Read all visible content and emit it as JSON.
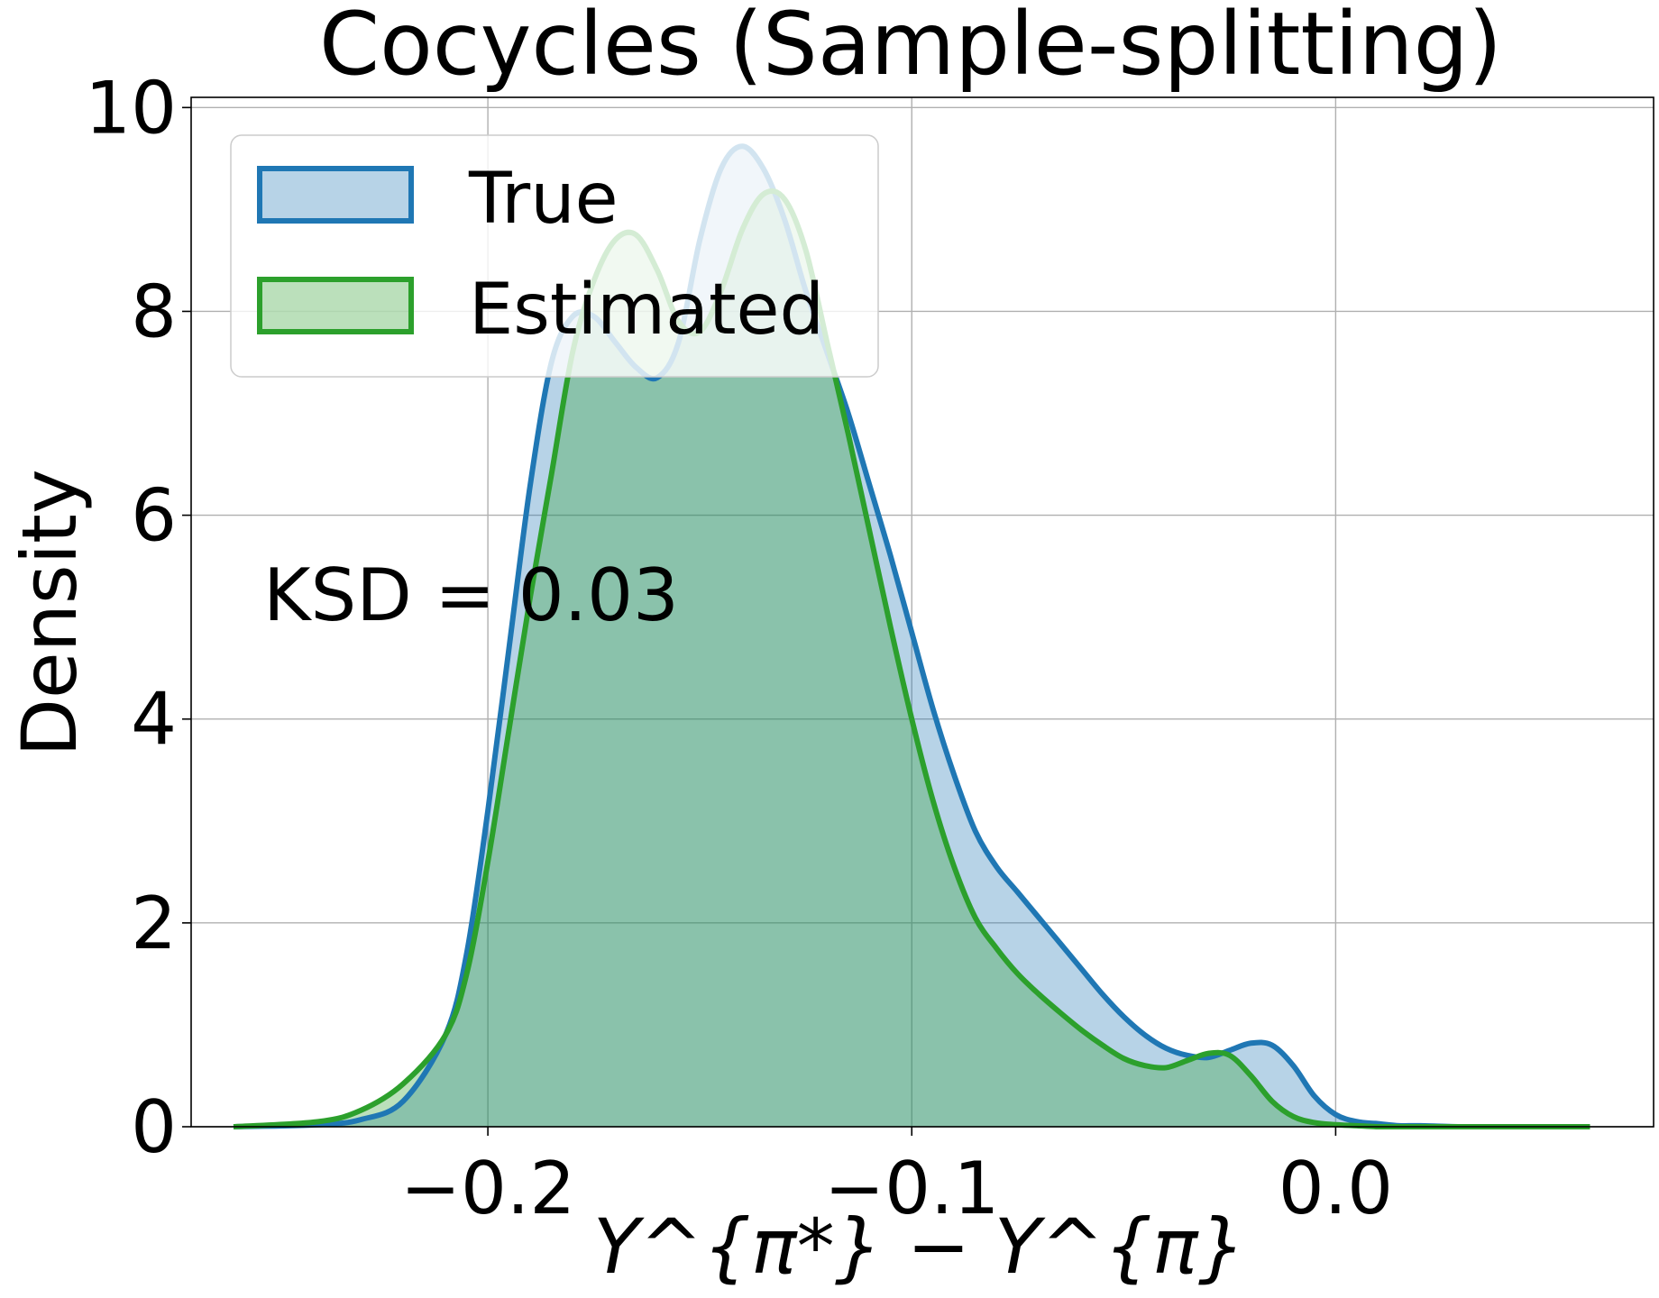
{
  "chart_data": {
    "type": "area",
    "title": "Cocycles (Sample-splitting)",
    "xlabel": "Y^{π*} − Y^{π}",
    "ylabel": "Density",
    "xlim": [
      -0.27,
      0.075
    ],
    "ylim": [
      0,
      10.1
    ],
    "x_ticks": [
      -0.2,
      -0.1,
      0.0
    ],
    "x_tick_labels": [
      "−0.2",
      "−0.1",
      "0.0"
    ],
    "y_ticks": [
      0,
      2,
      4,
      6,
      8,
      10
    ],
    "y_tick_labels": [
      "0",
      "2",
      "4",
      "6",
      "8",
      "10"
    ],
    "grid": true,
    "legend": {
      "location": "upper-left"
    },
    "annotation": "KSD = 0.03",
    "series": [
      {
        "name": "True",
        "color": "#1f77b4",
        "x": [
          -0.26,
          -0.24,
          -0.23,
          -0.22,
          -0.21,
          -0.205,
          -0.2,
          -0.195,
          -0.19,
          -0.185,
          -0.18,
          -0.175,
          -0.17,
          -0.165,
          -0.16,
          -0.155,
          -0.15,
          -0.145,
          -0.14,
          -0.135,
          -0.13,
          -0.125,
          -0.12,
          -0.115,
          -0.11,
          -0.105,
          -0.1,
          -0.095,
          -0.09,
          -0.085,
          -0.08,
          -0.075,
          -0.07,
          -0.065,
          -0.06,
          -0.055,
          -0.05,
          -0.045,
          -0.04,
          -0.035,
          -0.03,
          -0.025,
          -0.02,
          -0.015,
          -0.01,
          -0.005,
          0.0,
          0.005,
          0.01,
          0.015,
          0.02,
          0.03,
          0.04,
          0.06
        ],
        "values": [
          0,
          0.02,
          0.07,
          0.25,
          0.9,
          1.7,
          3.1,
          4.7,
          6.3,
          7.5,
          7.95,
          7.95,
          7.7,
          7.45,
          7.35,
          7.7,
          8.7,
          9.4,
          9.62,
          9.4,
          8.9,
          8.2,
          7.6,
          7.0,
          6.3,
          5.6,
          4.85,
          4.1,
          3.45,
          2.9,
          2.55,
          2.3,
          2.05,
          1.8,
          1.55,
          1.3,
          1.08,
          0.9,
          0.77,
          0.7,
          0.68,
          0.75,
          0.82,
          0.8,
          0.6,
          0.3,
          0.12,
          0.05,
          0.03,
          0.01,
          0.01,
          0.0,
          0.0,
          0.0
        ]
      },
      {
        "name": "Estimated",
        "color": "#2ca02c",
        "x": [
          -0.26,
          -0.24,
          -0.23,
          -0.22,
          -0.21,
          -0.205,
          -0.2,
          -0.195,
          -0.19,
          -0.185,
          -0.18,
          -0.175,
          -0.17,
          -0.165,
          -0.16,
          -0.155,
          -0.15,
          -0.145,
          -0.14,
          -0.135,
          -0.13,
          -0.125,
          -0.12,
          -0.115,
          -0.11,
          -0.105,
          -0.1,
          -0.095,
          -0.09,
          -0.085,
          -0.08,
          -0.075,
          -0.07,
          -0.065,
          -0.06,
          -0.055,
          -0.05,
          -0.045,
          -0.04,
          -0.035,
          -0.03,
          -0.025,
          -0.02,
          -0.015,
          -0.01,
          -0.005,
          0.0,
          0.005,
          0.01,
          0.015,
          0.02,
          0.03,
          0.04,
          0.06
        ],
        "values": [
          0,
          0.05,
          0.16,
          0.42,
          0.9,
          1.5,
          2.6,
          3.9,
          5.2,
          6.4,
          7.6,
          8.3,
          8.7,
          8.75,
          8.4,
          7.9,
          7.8,
          8.2,
          8.8,
          9.15,
          9.1,
          8.6,
          7.7,
          6.8,
          5.85,
          4.9,
          4.0,
          3.2,
          2.55,
          2.05,
          1.75,
          1.5,
          1.3,
          1.12,
          0.95,
          0.8,
          0.67,
          0.6,
          0.58,
          0.65,
          0.72,
          0.7,
          0.5,
          0.25,
          0.1,
          0.04,
          0.02,
          0.01,
          0.0,
          0.0,
          0.0,
          0.0,
          0.0,
          0.0
        ]
      }
    ]
  }
}
